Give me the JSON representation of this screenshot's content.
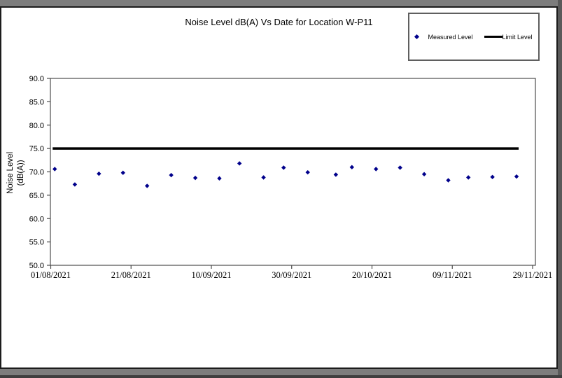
{
  "window": {
    "background_color": "#7d7d7d",
    "panel_background": "#ffffff",
    "panel_border_color": "#1c1c1c"
  },
  "chart_data": {
    "type": "scatter",
    "title": "Noise Level dB(A) Vs Date for Location W-P11",
    "xlabel": "",
    "ylabel": "Noise Level (dB(A))",
    "ylabel_lines": [
      "Noise Level",
      "(dB(A))"
    ],
    "ylim": [
      50,
      90
    ],
    "ytick_labels": [
      "90.0",
      "85.0",
      "80.0",
      "75.0",
      "70.0",
      "65.0",
      "60.0",
      "55.0",
      "50.0"
    ],
    "x_range": [
      "01/08/2021",
      "29/11/2021"
    ],
    "xtick_labels": [
      "01/08/2021",
      "21/08/2021",
      "10/09/2021",
      "30/09/2021",
      "20/10/2021",
      "09/11/2021",
      "29/11/2021"
    ],
    "grid": false,
    "plot_border": true,
    "legend_position": "top-right",
    "axis_color": "#4d4d4d",
    "series": [
      {
        "name": "Measured Level",
        "kind": "scatter",
        "marker": "diamond",
        "color": "#00008B",
        "points": [
          [
            "02/08/2021",
            70.6
          ],
          [
            "07/08/2021",
            67.3
          ],
          [
            "13/08/2021",
            69.6
          ],
          [
            "19/08/2021",
            69.8
          ],
          [
            "25/08/2021",
            67.0
          ],
          [
            "31/08/2021",
            69.3
          ],
          [
            "06/09/2021",
            68.7
          ],
          [
            "12/09/2021",
            68.6
          ],
          [
            "17/09/2021",
            71.8
          ],
          [
            "23/09/2021",
            68.8
          ],
          [
            "28/09/2021",
            70.9
          ],
          [
            "04/10/2021",
            69.9
          ],
          [
            "11/10/2021",
            69.4
          ],
          [
            "15/10/2021",
            71.0
          ],
          [
            "21/10/2021",
            70.6
          ],
          [
            "27/10/2021",
            70.9
          ],
          [
            "02/11/2021",
            69.5
          ],
          [
            "08/11/2021",
            68.2
          ],
          [
            "13/11/2021",
            68.8
          ],
          [
            "19/11/2021",
            68.9
          ],
          [
            "25/11/2021",
            69.0
          ]
        ]
      },
      {
        "name": "Limit Level",
        "kind": "line",
        "color": "#000000",
        "value": 75.0,
        "from": "02/08/2021",
        "to": "25/11/2021"
      }
    ]
  }
}
